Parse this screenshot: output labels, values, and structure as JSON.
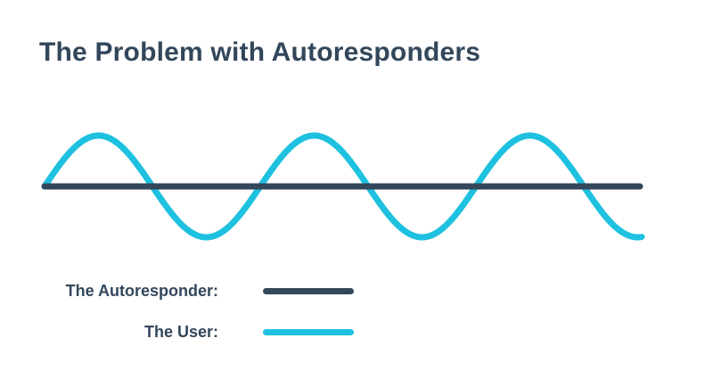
{
  "title": "The Problem with Autoresponders",
  "colors": {
    "autoresponder": "#33475b",
    "user": "#1ec1df"
  },
  "legend": {
    "autoresponder_label": "The Autoresponder:",
    "user_label": "The User:"
  },
  "chart_data": {
    "type": "line",
    "series": [
      {
        "name": "The Autoresponder",
        "pattern": "flat",
        "color": "#33475b"
      },
      {
        "name": "The User",
        "pattern": "sine wave",
        "cycles": 2.8,
        "color": "#1ec1df"
      }
    ]
  }
}
